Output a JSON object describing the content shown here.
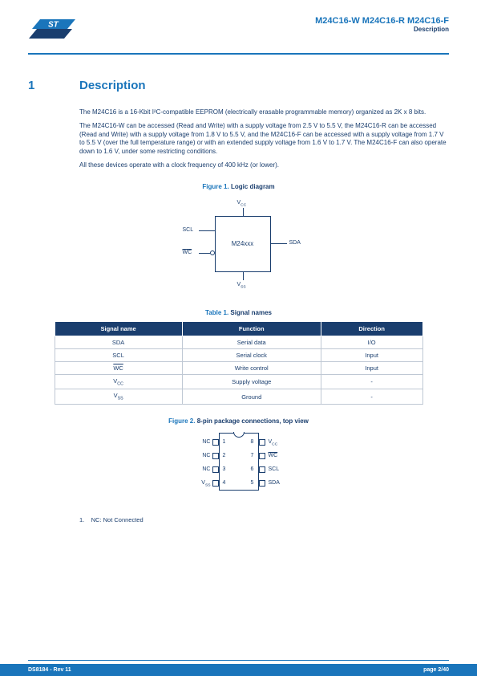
{
  "header": {
    "title": "M24C16-W M24C16-R M24C16-F",
    "subtitle": "Description"
  },
  "section": {
    "number": "1",
    "title": "Description"
  },
  "paragraphs": {
    "p1": "The M24C16 is a 16-Kbit I²C-compatible EEPROM (electrically erasable programmable memory) organized as 2K x 8 bits.",
    "p2": "The M24C16-W can be accessed (Read and Write) with a supply voltage from 2.5 V to 5.5 V, the M24C16-R can be accessed (Read and Write) with a supply voltage from 1.8 V to 5.5 V, and the M24C16-F can be accessed with a supply voltage from 1.7 V to 5.5 V (over the full temperature range) or with an extended supply voltage from 1.6 V to 1.7 V. The M24C16-F can also operate down to 1.6 V, under some restricting conditions.",
    "p3": "All these devices operate with a clock frequency of 400 kHz (or lower)."
  },
  "figure1": {
    "num": "Figure 1.",
    "title": "Logic diagram",
    "block_label": "M24xxx",
    "pins": {
      "vcc": "V",
      "vcc_sub": "CC",
      "vss": "V",
      "vss_sub": "SS",
      "scl": "SCL",
      "wc": "WC",
      "sda": "SDA"
    }
  },
  "table1": {
    "num": "Table 1.",
    "title": "Signal names",
    "headers": [
      "Signal name",
      "Function",
      "Direction"
    ],
    "rows": [
      [
        "SDA",
        "Serial data",
        "I/O"
      ],
      [
        "SCL",
        "Serial clock",
        "Input"
      ],
      [
        "WC_OVER",
        "Write control",
        "Input"
      ],
      [
        "V_CC",
        "Supply voltage",
        "-"
      ],
      [
        "V_SS",
        "Ground",
        "-"
      ]
    ]
  },
  "figure2": {
    "num": "Figure 2.",
    "title": "8-pin package connections, top view",
    "left": [
      "NC",
      "NC",
      "NC",
      "V_SS"
    ],
    "right": [
      "V_CC",
      "WC_OVER",
      "SCL",
      "SDA"
    ],
    "nums_left": [
      "1",
      "2",
      "3",
      "4"
    ],
    "nums_right": [
      "8",
      "7",
      "6",
      "5"
    ]
  },
  "footnote": {
    "num": "1.",
    "text": "NC: Not Connected"
  },
  "footer": {
    "left": "DS8184 - Rev 11",
    "right": "page 2/40"
  },
  "colors": {
    "accent": "#1a75bb",
    "text": "#1a3e6e",
    "table_header_bg": "#1a3e6e",
    "table_border": "#bfc8d4",
    "background": "#ffffff"
  }
}
